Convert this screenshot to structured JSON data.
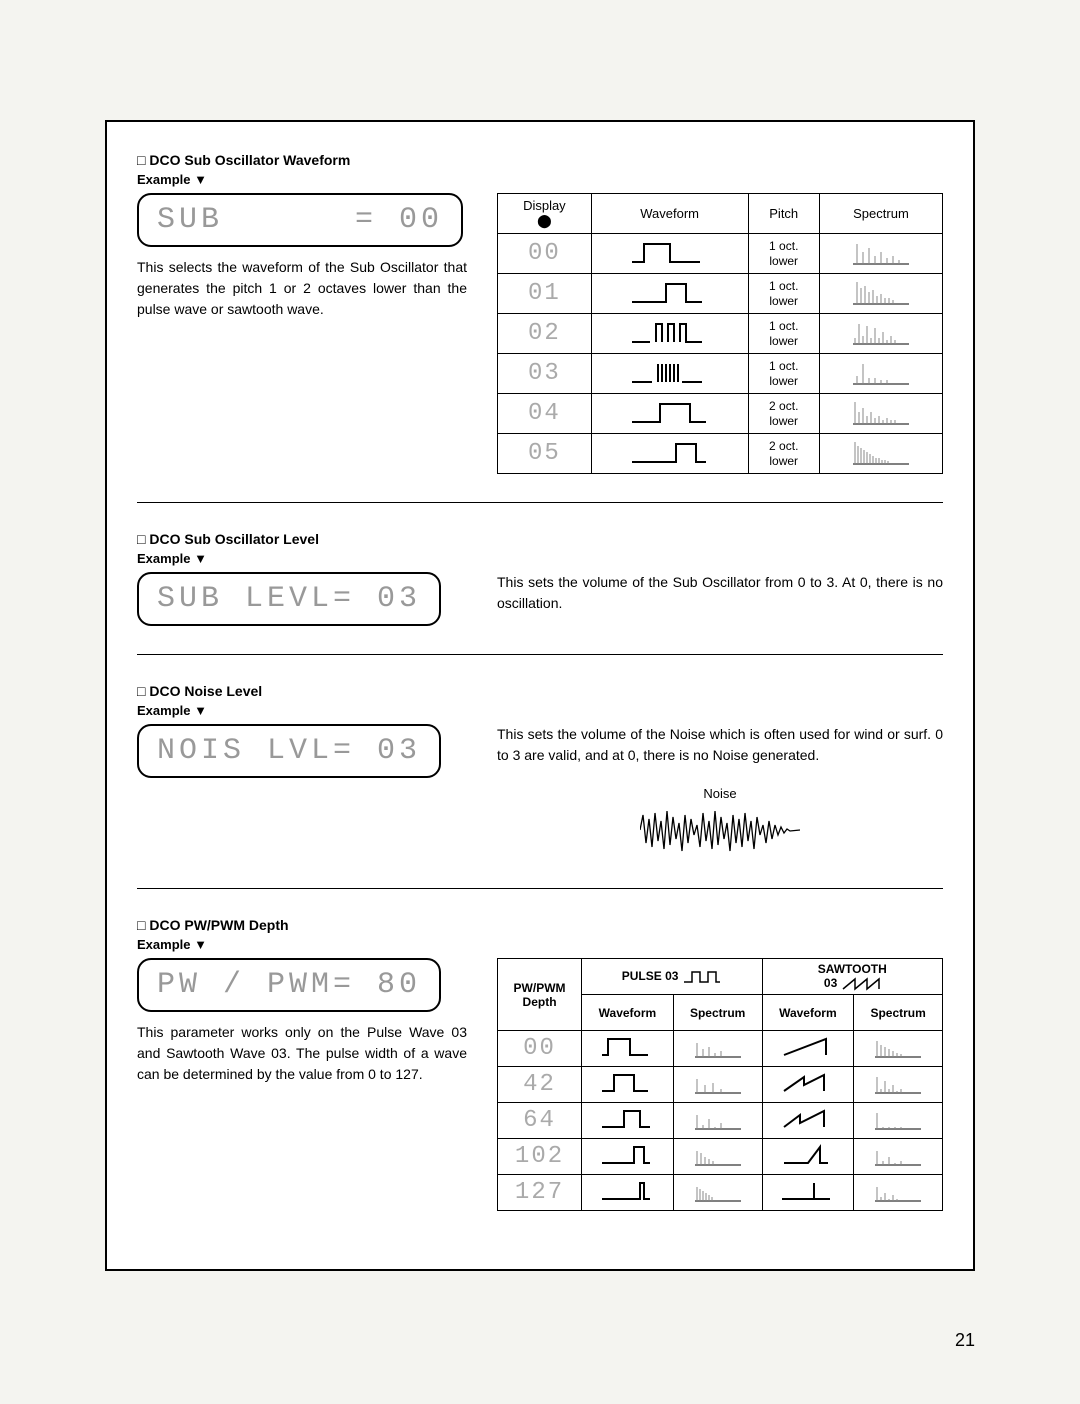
{
  "page_number": "21",
  "sections": {
    "sub_waveform": {
      "title": "DCO Sub Oscillator Waveform",
      "example_label": "Example",
      "lcd": "SUB      = 00",
      "desc": "This selects the waveform of the Sub Oscillator that generates the pitch 1 or 2 octaves lower than the pulse wave or sawtooth wave.",
      "table": {
        "headers": {
          "display": "Display",
          "waveform": "Waveform",
          "pitch": "Pitch",
          "spectrum": "Spectrum"
        },
        "rows": [
          {
            "disp": "00",
            "pitch": "1 oct.\nlower"
          },
          {
            "disp": "01",
            "pitch": "1 oct.\nlower"
          },
          {
            "disp": "02",
            "pitch": "1 oct.\nlower"
          },
          {
            "disp": "03",
            "pitch": "1 oct.\nlower"
          },
          {
            "disp": "04",
            "pitch": "2 oct.\nlower"
          },
          {
            "disp": "05",
            "pitch": "2 oct.\nlower"
          }
        ]
      }
    },
    "sub_level": {
      "title": "DCO Sub Oscillator Level",
      "example_label": "Example",
      "lcd": "SUB LEVL= 03",
      "desc": "This sets the volume of the Sub Oscillator from 0 to 3. At 0, there is no oscillation."
    },
    "noise_level": {
      "title": "DCO Noise Level",
      "example_label": "Example",
      "lcd": "NOIS LVL= 03",
      "desc": "This sets the volume of the Noise which is often used for wind or surf. 0 to 3 are valid, and at 0, there is no Noise generated.",
      "noise_label": "Noise"
    },
    "pwm": {
      "title": "DCO PW/PWM Depth",
      "example_label": "Example",
      "lcd": "PW / PWM= 80",
      "desc": "This parameter works only on the Pulse Wave 03 and Sawtooth Wave 03. The pulse width of a wave can be determined by the value from 0 to 127.",
      "table": {
        "header_depth": "PW/PWM\nDepth",
        "header_pulse": "PULSE 03",
        "header_saw": "SAWTOOTH\n03",
        "sub_waveform": "Waveform",
        "sub_spectrum": "Spectrum",
        "rows": [
          {
            "depth": "00"
          },
          {
            "depth": "42"
          },
          {
            "depth": "64"
          },
          {
            "depth": "102"
          },
          {
            "depth": "127"
          }
        ]
      }
    }
  },
  "style": {
    "border_color": "#000000",
    "lcd_text_color": "#999999",
    "background": "#ffffff",
    "font_size_title": 14,
    "font_size_body": 14,
    "font_size_lcd": 30
  }
}
